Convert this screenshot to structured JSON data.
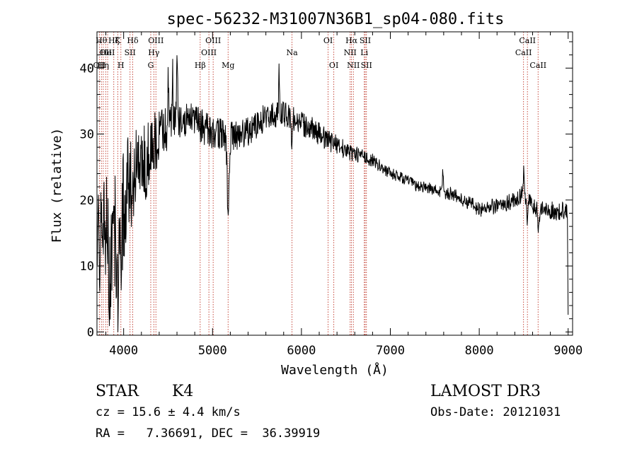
{
  "chart_data": {
    "type": "line",
    "title": "spec-56232-M31007N36B1_sp04-080.fits",
    "xlabel": "Wavelength (Å)",
    "ylabel": "Flux (relative)",
    "xlim": [
      3700,
      9050
    ],
    "ylim": [
      -0.5,
      45.5
    ],
    "xticks": [
      4000,
      5000,
      6000,
      7000,
      8000,
      9000
    ],
    "yticks": [
      0,
      10,
      20,
      30,
      40
    ],
    "x_minor_step": 200,
    "y_minor_step": 2,
    "series": [
      {
        "name": "flux",
        "continuum": [
          [
            3700,
            13
          ],
          [
            3800,
            15
          ],
          [
            3900,
            16
          ],
          [
            4000,
            20
          ],
          [
            4100,
            23
          ],
          [
            4200,
            25
          ],
          [
            4300,
            27
          ],
          [
            4400,
            30
          ],
          [
            4500,
            31
          ],
          [
            4600,
            32
          ],
          [
            4700,
            32.5
          ],
          [
            4800,
            32
          ],
          [
            4900,
            31
          ],
          [
            5000,
            30
          ],
          [
            5100,
            30
          ],
          [
            5200,
            29.5
          ],
          [
            5300,
            30
          ],
          [
            5400,
            30.5
          ],
          [
            5500,
            31.5
          ],
          [
            5600,
            32.5
          ],
          [
            5700,
            33
          ],
          [
            5800,
            33
          ],
          [
            5900,
            32.5
          ],
          [
            6000,
            31.5
          ],
          [
            6100,
            31
          ],
          [
            6200,
            30
          ],
          [
            6300,
            29
          ],
          [
            6400,
            28.5
          ],
          [
            6500,
            27.5
          ],
          [
            6600,
            27
          ],
          [
            6700,
            26.5
          ],
          [
            6800,
            26
          ],
          [
            6900,
            25
          ],
          [
            7000,
            24
          ],
          [
            7100,
            23.5
          ],
          [
            7200,
            23
          ],
          [
            7300,
            22
          ],
          [
            7400,
            22
          ],
          [
            7500,
            21.5
          ],
          [
            7600,
            21
          ],
          [
            7700,
            21
          ],
          [
            7800,
            20
          ],
          [
            7900,
            19.5
          ],
          [
            8000,
            18.5
          ],
          [
            8100,
            19
          ],
          [
            8200,
            19
          ],
          [
            8300,
            19.5
          ],
          [
            8400,
            20
          ],
          [
            8500,
            21
          ],
          [
            8600,
            19
          ],
          [
            8700,
            18.5
          ],
          [
            8800,
            18.5
          ],
          [
            8900,
            18
          ],
          [
            9000,
            19
          ]
        ],
        "noise": [
          [
            3700,
            8
          ],
          [
            3900,
            9
          ],
          [
            4000,
            9
          ],
          [
            4100,
            7
          ],
          [
            4300,
            6
          ],
          [
            4400,
            4
          ],
          [
            4600,
            3
          ],
          [
            5000,
            2.5
          ],
          [
            5800,
            2
          ],
          [
            6300,
            1.6
          ],
          [
            6800,
            1
          ],
          [
            7300,
            0.8
          ],
          [
            8000,
            1.1
          ],
          [
            8500,
            1.3
          ],
          [
            9000,
            1.5
          ]
        ],
        "features": [
          {
            "x": 3850,
            "depth": -8,
            "w": 20
          },
          {
            "x": 3933,
            "depth": -10,
            "w": 20
          },
          {
            "x": 3968,
            "depth": -9,
            "w": 20
          },
          {
            "x": 4500,
            "depth": 9,
            "w": 8
          },
          {
            "x": 4550,
            "depth": 8,
            "w": 8
          },
          {
            "x": 4600,
            "depth": 7,
            "w": 10
          },
          {
            "x": 5175,
            "depth": -11,
            "w": 15
          },
          {
            "x": 5750,
            "depth": 7,
            "w": 8
          },
          {
            "x": 5890,
            "depth": -4,
            "w": 10
          },
          {
            "x": 7590,
            "depth": 3.5,
            "w": 8
          },
          {
            "x": 8500,
            "depth": 3,
            "w": 10
          },
          {
            "x": 8540,
            "depth": -3,
            "w": 12
          },
          {
            "x": 8665,
            "depth": -3,
            "w": 12
          },
          {
            "x": 9000,
            "depth": -15,
            "w": 6
          }
        ]
      }
    ],
    "lines": [
      {
        "x": 3727,
        "label": "OII",
        "row": 3
      },
      {
        "x": 3750,
        "label": "Hθ",
        "row": 1
      },
      {
        "x": 3771,
        "label": "Hη",
        "row": 3
      },
      {
        "x": 3798,
        "label": "OII",
        "row": 2
      },
      {
        "x": 3820,
        "label": "HeI",
        "row": 2
      },
      {
        "x": 3889,
        "label": "Hζ",
        "row": 1
      },
      {
        "x": 3934,
        "label": "K",
        "row": 1
      },
      {
        "x": 3969,
        "label": "H",
        "row": 3
      },
      {
        "x": 4072,
        "label": "SII",
        "row": 2
      },
      {
        "x": 4102,
        "label": "Hδ",
        "row": 1
      },
      {
        "x": 4305,
        "label": "G",
        "row": 3
      },
      {
        "x": 4340,
        "label": "Hγ",
        "row": 2
      },
      {
        "x": 4363,
        "label": "OIII",
        "row": 1
      },
      {
        "x": 4861,
        "label": "Hβ",
        "row": 3
      },
      {
        "x": 4959,
        "label": "OIII",
        "row": 2
      },
      {
        "x": 5007,
        "label": "OIII",
        "row": 1
      },
      {
        "x": 5175,
        "label": "Mg",
        "row": 3
      },
      {
        "x": 5894,
        "label": "Na",
        "row": 2
      },
      {
        "x": 6300,
        "label": "OI",
        "row": 1
      },
      {
        "x": 6364,
        "label": "OI",
        "row": 3
      },
      {
        "x": 6548,
        "label": "NII",
        "row": 2
      },
      {
        "x": 6563,
        "label": "Hα",
        "row": 1
      },
      {
        "x": 6584,
        "label": "NII",
        "row": 3
      },
      {
        "x": 6707,
        "label": "Li",
        "row": 2
      },
      {
        "x": 6717,
        "label": "SII",
        "row": 1
      },
      {
        "x": 6731,
        "label": "SII",
        "row": 3
      },
      {
        "x": 8498,
        "label": "CaII",
        "row": 2
      },
      {
        "x": 8542,
        "label": "CaII",
        "row": 1
      },
      {
        "x": 8662,
        "label": "CaII",
        "row": 3
      }
    ]
  },
  "info": {
    "class_label": "STAR",
    "subclass": "K4",
    "survey": "LAMOST DR3",
    "cz_line": "cz = 15.6 ± 4.4 km/s",
    "obs_date_line": "Obs-Date: 20121031",
    "ra_dec_line": "RA =   7.36691, DEC =  36.39919"
  }
}
